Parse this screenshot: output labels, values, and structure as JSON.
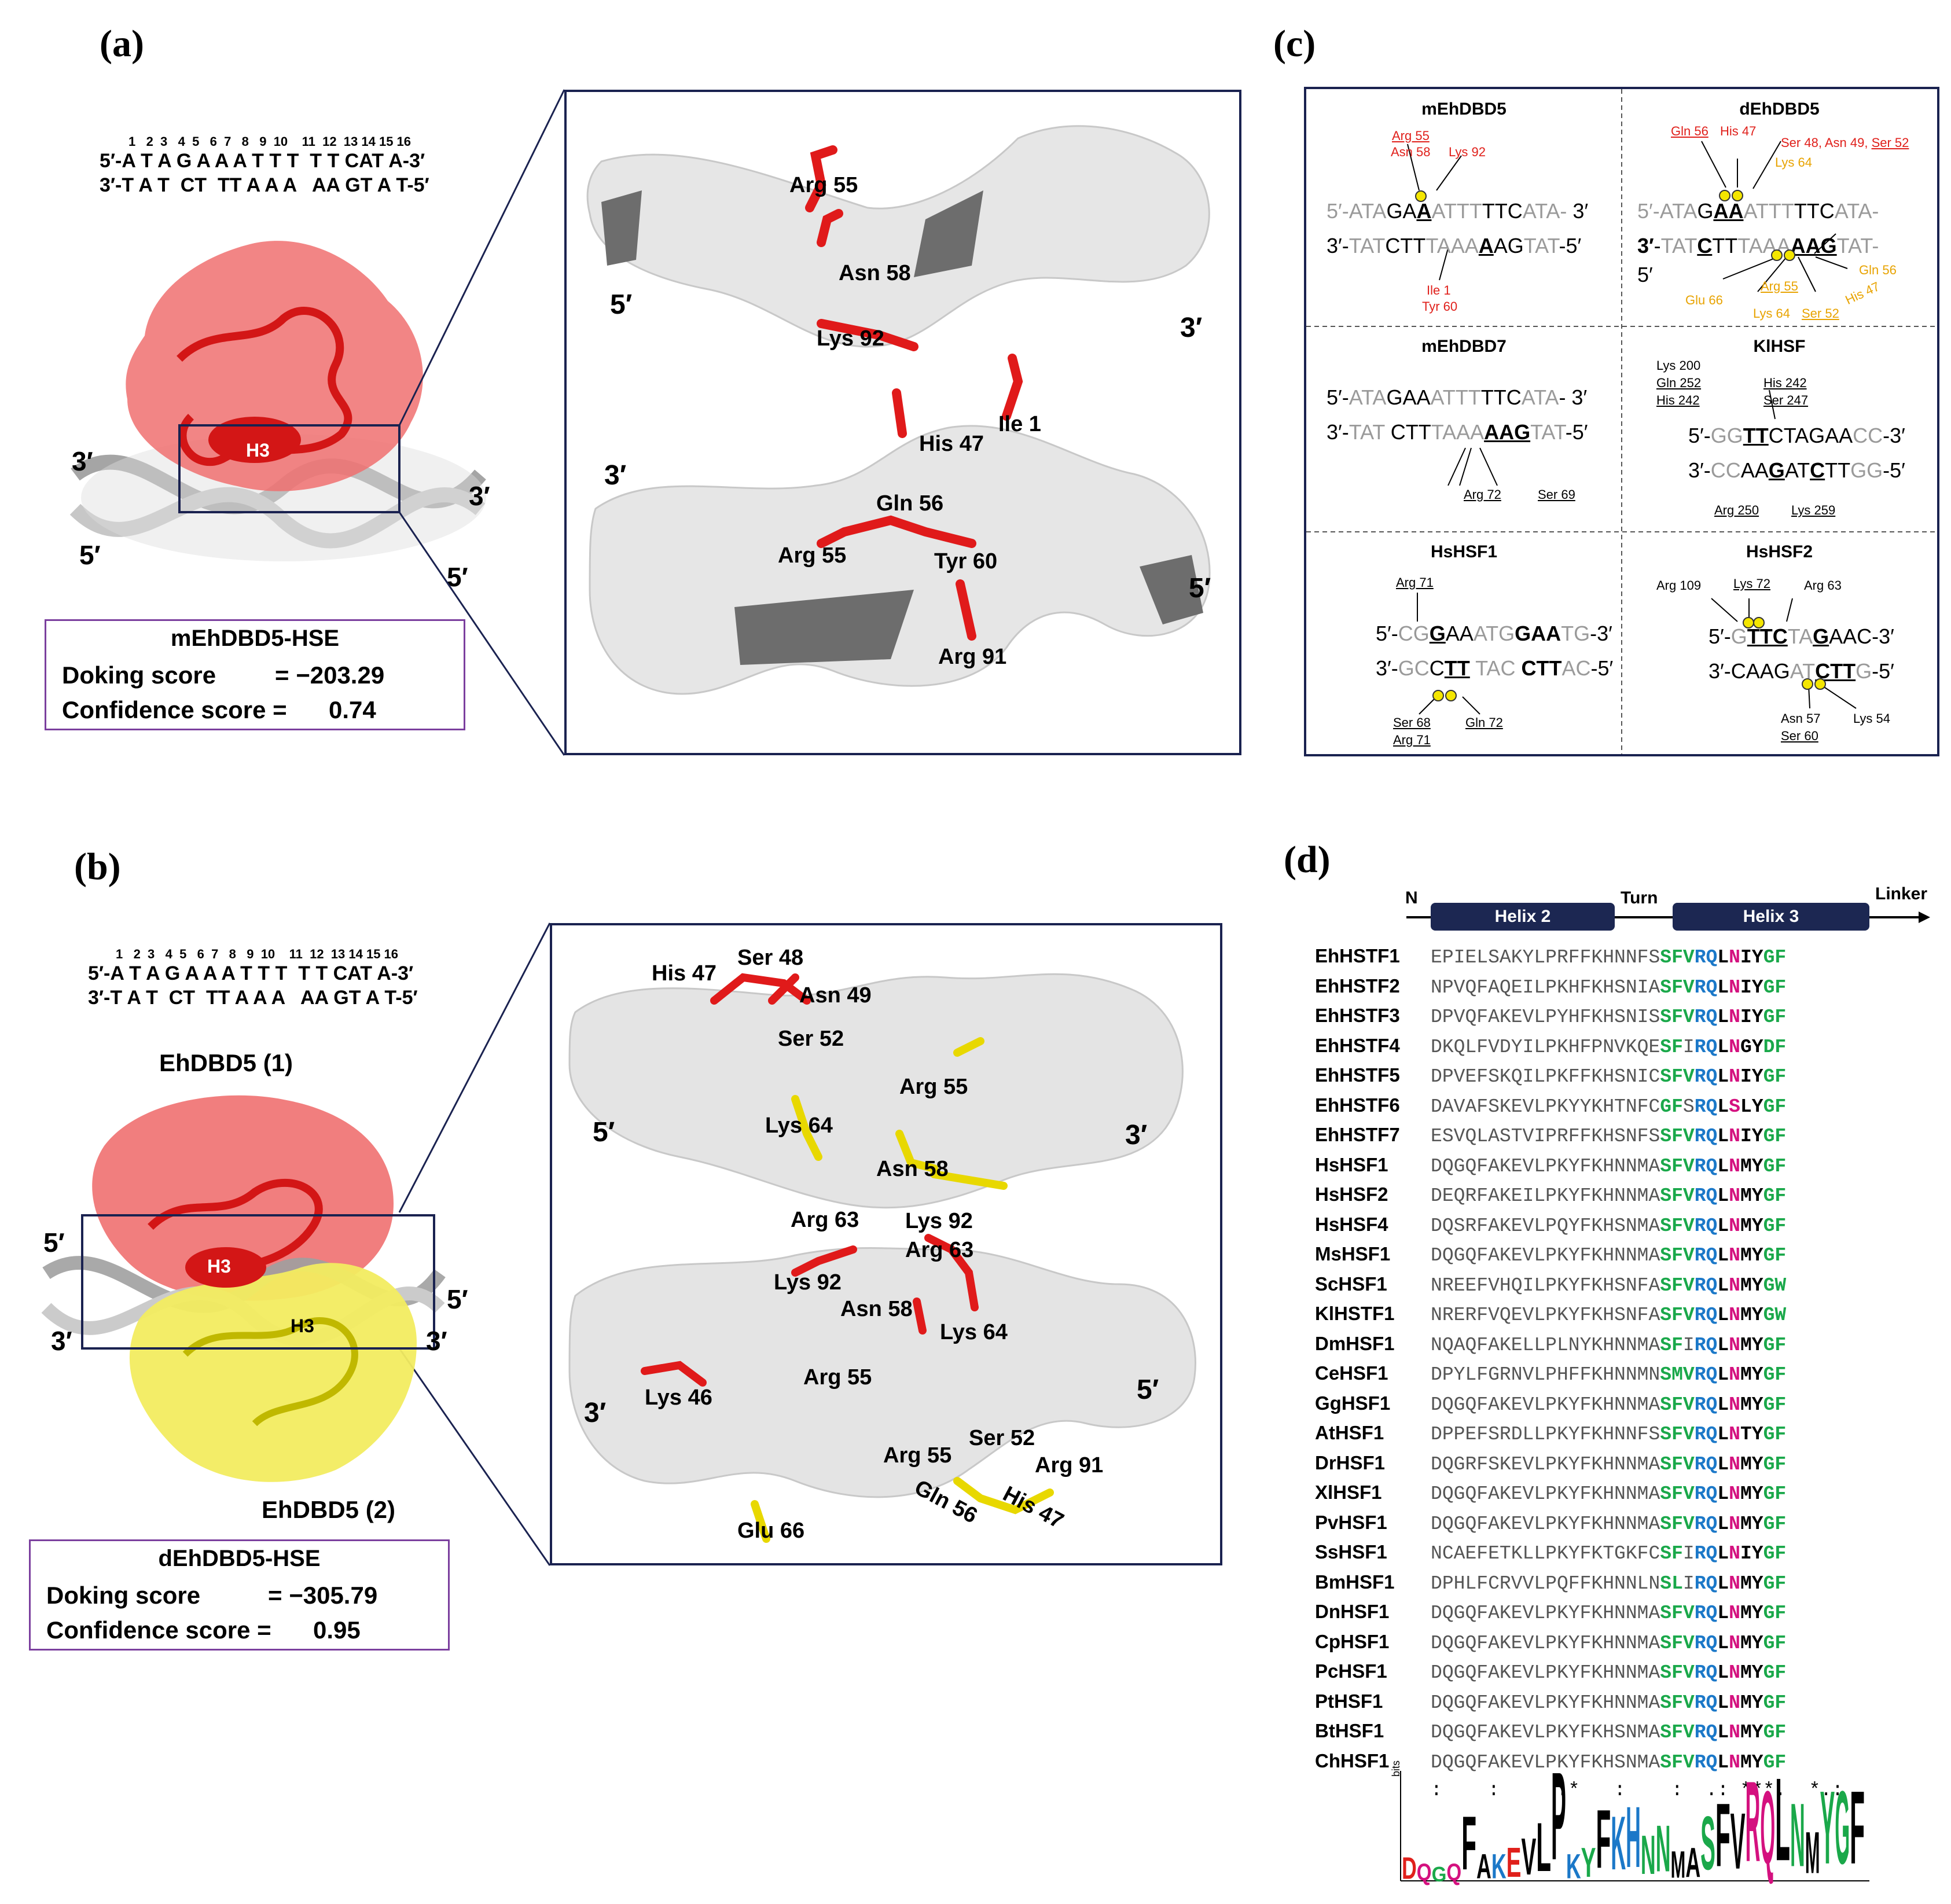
{
  "panel_a": {
    "letter": "(a)",
    "seq_nums": "1   2  3   4  5   6  7   8   9  10    11  12  13 14 15 16",
    "seq_top": "5′-A T A G A A A T T T  T T CAT A-3′",
    "seq_bot": "3′-T A T  CT  TT A A A   AA GT A T-5′",
    "helix_label": "H3",
    "ends": [
      "3′",
      "3′",
      "5′",
      "5′"
    ],
    "score_title": "mEhDBD5-HSE",
    "docking_label": "Doking score",
    "docking_value": "= −203.29",
    "confidence_label": "Confidence score =",
    "confidence_value": "0.74",
    "zoom_labels": [
      "Arg 55",
      "Asn 58",
      "Lys 92",
      "His 47",
      "Ile 1",
      "Gln 56",
      "Arg 55",
      "Tyr 60",
      "Arg 91"
    ],
    "zoom_ends": [
      "5′",
      "3′",
      "3′",
      "5′"
    ]
  },
  "panel_b": {
    "letter": "(b)",
    "seq_nums": "1   2  3   4  5   6  7   8   9  10    11  12  13 14 15 16",
    "seq_top": "5′-A T A G A A A T T T  T T CAT A-3′",
    "seq_bot": "3′-T A T  CT  TT A A A   AA GT A T-5′",
    "mono1": "EhDBD5 (1)",
    "mono2": "EhDBD5 (2)",
    "helix_labels": [
      "H3",
      "H3"
    ],
    "ends": [
      "5′",
      "3′",
      "5′",
      "3′"
    ],
    "score_title": "dEhDBD5-HSE",
    "docking_label": "Doking score",
    "docking_value": "= −305.79",
    "confidence_label": "Confidence score =",
    "confidence_value": "0.95",
    "zoom_labels": [
      "His 47",
      "Ser 48",
      "Asn 49",
      "Ser 52",
      "Arg 55",
      "Lys 64",
      "Asn 58",
      "Arg 63",
      "Lys 92",
      "Arg 63",
      "Lys 92",
      "Asn 58",
      "Lys 64",
      "Arg 55",
      "Lys 46",
      "Arg 55",
      "Ser 52",
      "Arg 91",
      "Gln 56",
      "His 47",
      "Glu 66"
    ],
    "zoom_ends": [
      "5′",
      "3′",
      "3′",
      "5′"
    ]
  },
  "panel_c": {
    "letter": "(c)",
    "cells": [
      {
        "title": "mEhDBD5",
        "top": "5′-ATAGAAATTTTTCATA- 3′",
        "bot": "3′-TATCTTTAAAAAGTAT-5′",
        "labels": [
          "Arg 55",
          "Asn 58",
          "Lys 92",
          "Ile 1",
          "Tyr 60"
        ]
      },
      {
        "title": "dEhDBD5",
        "top": "5′-ATAGAAATTTTTCATA-",
        "bot": "3′-TATCTTTAAAAAGTAT-",
        "end": "5′",
        "labels": [
          "Gln 56",
          "His 47",
          "Ser 48, Asn 49,",
          "Ser 52",
          "Lys 64",
          "Arg 55",
          "Gln 56",
          "Glu 66",
          "Lys 64",
          "Ser 52",
          "His 47"
        ]
      },
      {
        "title": "mEhDBD7",
        "top": "5′-ATAGAAATTTTTCATA- 3′",
        "bot": "3′-TAT CTTTAAAAAGTAT-5′",
        "labels": [
          "Arg 72",
          "Ser 69"
        ]
      },
      {
        "title": "KlHSF",
        "top": "5′-GGTTCTAGAACC-3′",
        "bot": "3′-CCAAGATCTTGG-5′",
        "labels": [
          "Lys 200",
          "Gln 252",
          "His 242",
          "His 242",
          "Ser 247",
          "Arg 250",
          "Lys 259"
        ]
      },
      {
        "title": "HsHSF1",
        "top": "5′-CGGAAATGGAATG-3′",
        "bot": "3′-GCCTTTAC CTTAC-5′",
        "labels": [
          "Arg 71",
          "Ser 68",
          "Arg 71",
          "Gln 72"
        ]
      },
      {
        "title": "HsHSF2",
        "top": "5′-GTTCTAGAAC-3′",
        "bot": "3′-CAAGATCTTG-5′",
        "labels": [
          "Arg 109",
          "Lys 72",
          "Arg 63",
          "Asn 57",
          "Ser 60",
          "Lys 54"
        ]
      }
    ]
  },
  "panel_d": {
    "letter": "(d)",
    "schematic": {
      "n": "N",
      "helix2": "Helix 2",
      "turn": "Turn",
      "helix3": "Helix 3",
      "linker": "Linker"
    },
    "rows": [
      {
        "name": "EhHSTF1",
        "seq": "EPIELSAKYLPRFFKHNNFSSFVRQLNIYGF"
      },
      {
        "name": "EhHSTF2",
        "seq": "NPVQFAQEILPKHFKHSNIASFVRQLNIYGF"
      },
      {
        "name": "EhHSTF3",
        "seq": "DPVQFAKEVLPYHFKHSNISSFVRQLNIYGF"
      },
      {
        "name": "EhHSTF4",
        "seq": "DKQLFVDYILPKHFPNVKQESFIRQLNGYDF"
      },
      {
        "name": "EhHSTF5",
        "seq": "DPVEFSKQILPKFFKHSNICSFVRQLNIYGF"
      },
      {
        "name": "EhHSTF6",
        "seq": "DAVAFSKEVLPKYYKHTNFCGFSRQLSLYGF"
      },
      {
        "name": "EhHSTF7",
        "seq": "ESVQLASTVIPRFFKHSNFSSFVRQLNIYGF"
      },
      {
        "name": "HsHSF1",
        "seq": "DQGQFAKEVLPKYFKHNNMASFVRQLNMYGF"
      },
      {
        "name": "HsHSF2",
        "seq": "DEQRFAKEILPKYFKHNNMASFVRQLNMYGF"
      },
      {
        "name": "HsHSF4",
        "seq": "DQSRFAKEVLPQYFKHSNMASFVRQLNMYGF"
      },
      {
        "name": "MsHSF1",
        "seq": "DQGQFAKEVLPKYFKHNNMASFVRQLNMYGF"
      },
      {
        "name": "ScHSF1",
        "seq": "NREEFVHQILPKYFKHSNFASFVRQLNMYGW"
      },
      {
        "name": "KlHSTF1",
        "seq": "NRERFVQEVLPKYFKHSNFASFVRQLNMYGW"
      },
      {
        "name": "DmHSF1",
        "seq": "NQAQFAKELLPLNYKHNNMASFIRQLNMYGF"
      },
      {
        "name": "CeHSF1",
        "seq": "DPYLFGRNVLPHFFKHNNMNSMVRQLNMYGF"
      },
      {
        "name": "GgHSF1",
        "seq": "DQGQFAKEVLPKYFKHNNMASFVRQLNMYGF"
      },
      {
        "name": "AtHSF1",
        "seq": "DPPEFSRDLLPKYFKHNNFSSFVRQLNTYGF"
      },
      {
        "name": "DrHSF1",
        "seq": "DQGRFSKEVLPKYFKHNNMASFVRQLNMYGF"
      },
      {
        "name": "XlHSF1",
        "seq": "DQGQFAKEVLPKYFKHNNMASFVRQLNMYGF"
      },
      {
        "name": "PvHSF1",
        "seq": "DQGQFAKEVLPKYFKHNNMASFVRQLNMYGF"
      },
      {
        "name": "SsHSF1",
        "seq": "NCAEFETKLLPKYFKTGKFCSFIRQLNIYGF"
      },
      {
        "name": "BmHSF1",
        "seq": "DPHLFCRVVLPQFFKHNNLNSLIRQLNMYGF"
      },
      {
        "name": "DnHSF1",
        "seq": "DQGQFAKEVLPKYFKHNNMASFVRQLNMYGF"
      },
      {
        "name": "CpHSF1",
        "seq": "DQGQFAKEVLPKYFKHNNMASFVRQLNMYGF"
      },
      {
        "name": "PcHSF1",
        "seq": "DQGQFAKEVLPKYFKHNNMASFVRQLNMYGF"
      },
      {
        "name": "PtHSF1",
        "seq": "DQGQFAKEVLPKYFKHNNMASFVRQLNMYGF"
      },
      {
        "name": "BtHSF1",
        "seq": "DQGQFAKEVLPKYFKHSNMASFVRQLNMYGF"
      },
      {
        "name": "ChHSF1",
        "seq": "DQGQFAKEVLPKYFKHSNMASFVRQLNMYGF"
      }
    ],
    "consensus": ":    :     :*   :    :  .: ***.  *.:",
    "logo_letters": "DQGQFAKEVLPKYFKHNNMASFVRQLNMYGF",
    "logo_axis": "bits",
    "logo_ticks": [
      "4",
      "3",
      "2",
      "1",
      "0"
    ],
    "colors": {
      "green": "#1aa84a",
      "blue": "#1b78c8",
      "magenta": "#d4117f",
      "red_protein": "#e0201b",
      "yellow_protein": "#f0e020",
      "navy": "#1c2752"
    }
  }
}
